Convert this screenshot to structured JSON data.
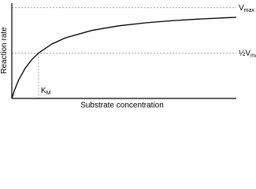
{
  "chart_data": {
    "type": "line",
    "x_label": "Substrate concentration",
    "y_label": "Reaction rate",
    "x": [
      0,
      0.1,
      0.25,
      0.5,
      0.75,
      1,
      1.5,
      2,
      3,
      4,
      5,
      6,
      7,
      8,
      8.4
    ],
    "series": [
      {
        "color": "#000000",
        "values": [
          0,
          0.091,
          0.2,
          0.333,
          0.429,
          0.5,
          0.6,
          0.667,
          0.75,
          0.8,
          0.833,
          0.857,
          0.875,
          0.889,
          0.894
        ]
      }
    ],
    "xlim": [
      0,
      8.4
    ],
    "ylim": [
      0,
      1.05
    ],
    "reference_lines": {
      "vmax": {
        "value": 1,
        "label": "V",
        "subscript": "max"
      },
      "half_vmax": {
        "value": 0.5,
        "label": "½V",
        "subscript": "max"
      },
      "km": {
        "value": 1,
        "label": "K",
        "subscript": "M"
      }
    }
  }
}
